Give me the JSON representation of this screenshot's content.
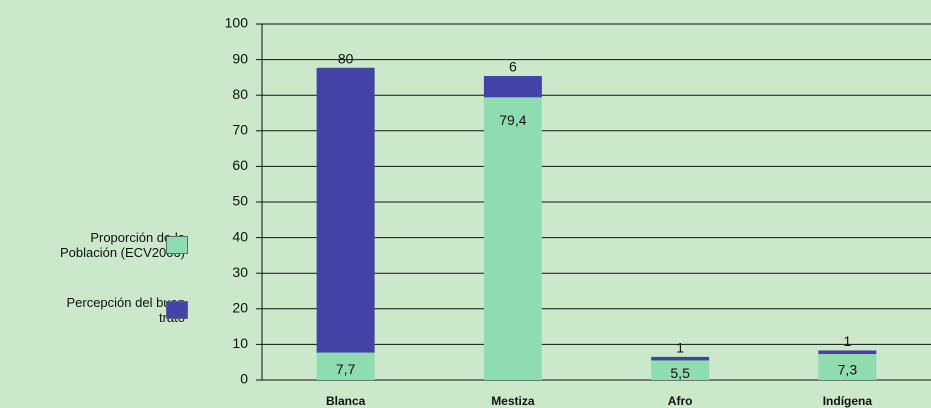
{
  "chart_data": {
    "type": "stacked-bar",
    "categories": [
      "Blanca",
      "Mestiza",
      "Afro",
      "Indígena"
    ],
    "series": [
      {
        "name": "Proporción de la Población (ECV2006)",
        "color": "#8fdcb0",
        "values": [
          7.7,
          79.4,
          5.5,
          7.3
        ],
        "value_labels": [
          "7,7",
          "79,4",
          "5,5",
          "7,3"
        ]
      },
      {
        "name": "Percepción del buen trato",
        "color": "#4343a6",
        "values": [
          80,
          6,
          1,
          1
        ]
      }
    ],
    "ylim": [
      0,
      100
    ],
    "yticks": [
      0,
      10,
      20,
      30,
      40,
      50,
      60,
      70,
      80,
      90,
      100
    ],
    "grid": true
  }
}
